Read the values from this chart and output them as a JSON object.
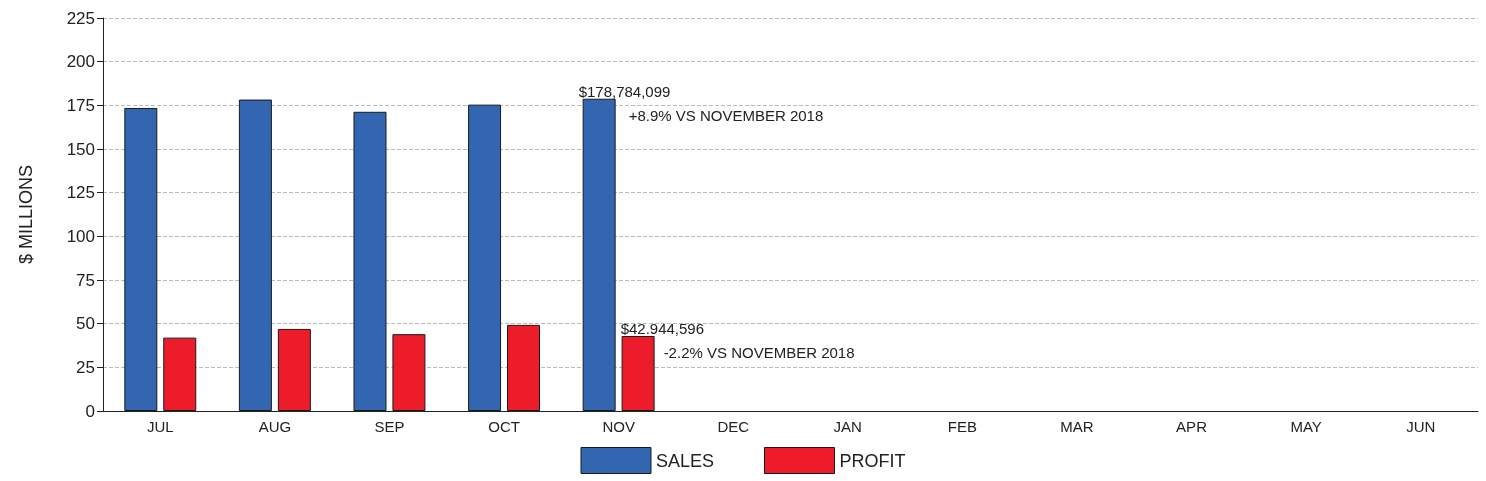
{
  "chart_data": {
    "type": "bar",
    "ylabel": "$ MILLIONS",
    "categories": [
      "JUL",
      "AUG",
      "SEP",
      "OCT",
      "NOV",
      "DEC",
      "JAN",
      "FEB",
      "MAR",
      "APR",
      "MAY",
      "JUN"
    ],
    "series": [
      {
        "name": "SALES",
        "color": "#3366b0",
        "values": [
          173.5,
          178.3,
          171.3,
          175.4,
          178.784099,
          null,
          null,
          null,
          null,
          null,
          null,
          null
        ]
      },
      {
        "name": "PROFIT",
        "color": "#ed1c2b",
        "values": [
          42,
          47,
          44,
          49.3,
          42.944596,
          null,
          null,
          null,
          null,
          null,
          null,
          null
        ]
      }
    ],
    "ylim": [
      0,
      225
    ],
    "yticks": [
      0,
      25,
      50,
      75,
      100,
      125,
      150,
      175,
      200,
      225
    ],
    "grid": "y",
    "legend": "bottom",
    "annotations": [
      {
        "text": "$178,784,099",
        "x": "NOV",
        "y": 178.784099
      },
      "+8.9% VS NOVEMBER 2018",
      {
        "text": "$42.944,596",
        "x": "NOV",
        "y": 42.944596
      },
      "-2.2% VS NOVEMBER 2018"
    ]
  }
}
